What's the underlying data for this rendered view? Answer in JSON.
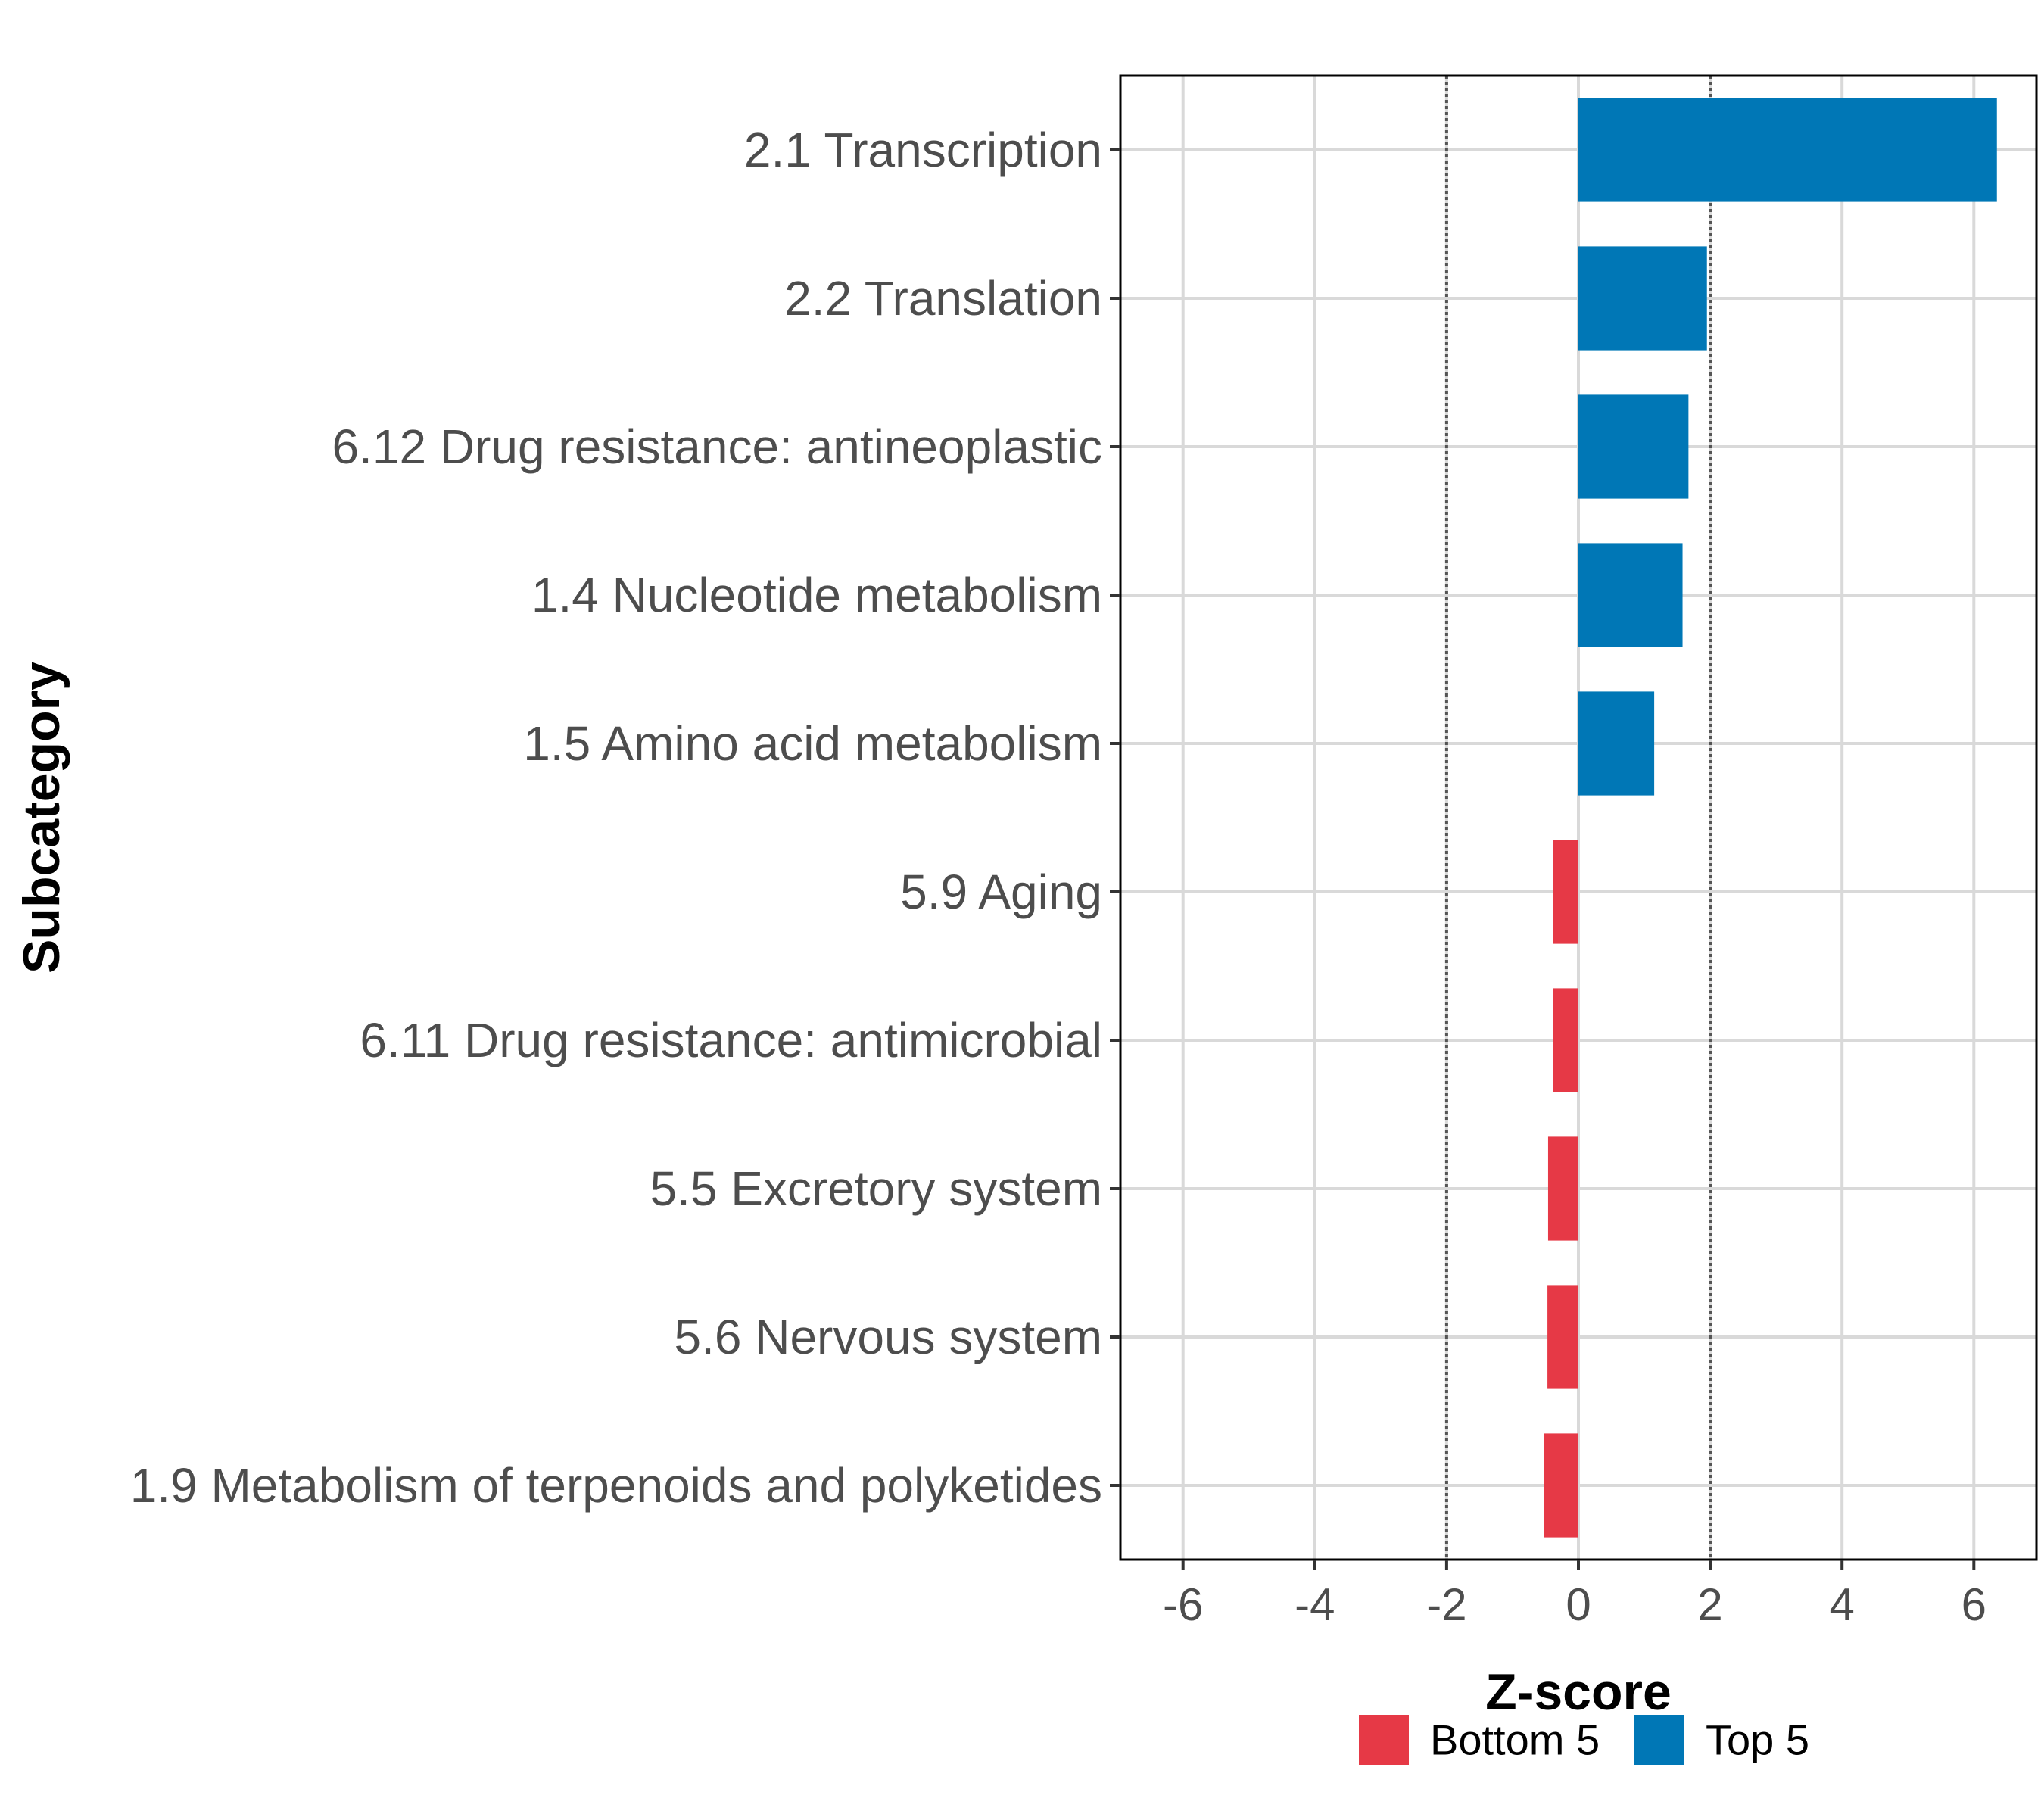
{
  "chart_data": {
    "type": "bar",
    "orientation": "horizontal",
    "title": "",
    "xlabel": "Z-score",
    "ylabel": "Subcategory",
    "xlim": [
      -6.95,
      6.95
    ],
    "xticks": [
      -6,
      -4,
      -2,
      0,
      2,
      4,
      6
    ],
    "xtick_labels": [
      "-6",
      "-4",
      "-2",
      "0",
      "2",
      "4",
      "6"
    ],
    "reference_lines": [
      -2,
      2
    ],
    "grid": true,
    "categories": [
      "2.1 Transcription",
      "2.2 Translation",
      "6.12 Drug resistance: antineoplastic",
      "1.4 Nucleotide metabolism",
      "1.5 Amino acid metabolism",
      "5.9 Aging",
      "6.11 Drug resistance: antimicrobial",
      "5.5 Excretory system",
      "5.6 Nervous system",
      "1.9 Metabolism of terpenoids and polyketides"
    ],
    "values": [
      6.35,
      1.95,
      1.67,
      1.58,
      1.15,
      -0.38,
      -0.38,
      -0.46,
      -0.47,
      -0.52
    ],
    "groups": [
      "Top 5",
      "Top 5",
      "Top 5",
      "Top 5",
      "Top 5",
      "Bottom 5",
      "Bottom 5",
      "Bottom 5",
      "Bottom 5",
      "Bottom 5"
    ],
    "legend": [
      {
        "name": "Bottom 5",
        "color": "#e63946"
      },
      {
        "name": "Top 5",
        "color": "#0077b6"
      }
    ],
    "legend_position": "bottom"
  }
}
